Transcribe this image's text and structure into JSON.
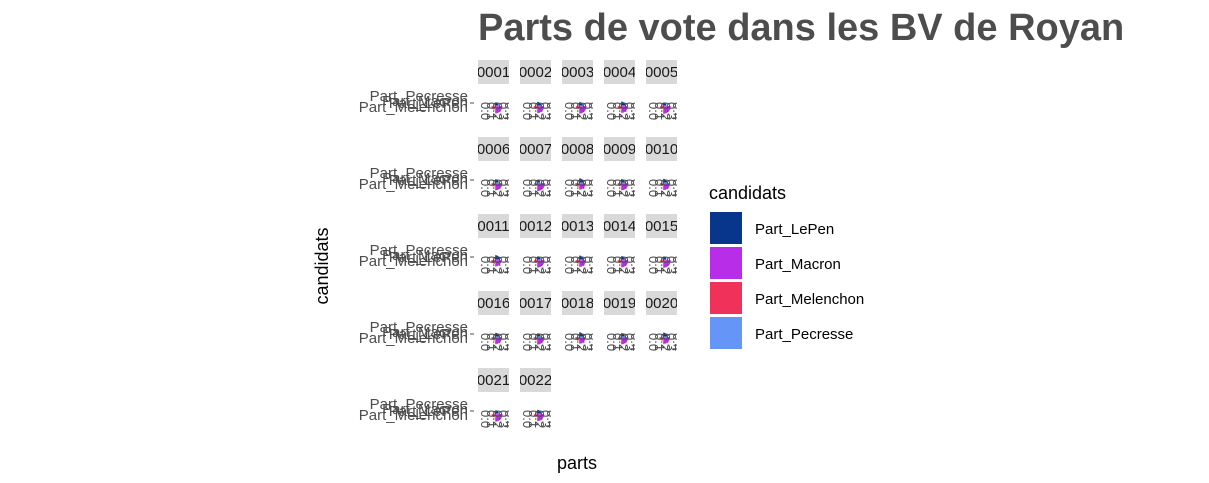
{
  "chart_data": {
    "type": "bar",
    "title": "Parts de vote dans les BV de Royan",
    "xlabel": "parts",
    "ylabel": "candidats",
    "categories": [
      "Part_LePen",
      "Part_Macron",
      "Part_Melenchon",
      "Part_Pecresse"
    ],
    "xlim": [
      0,
      0.4
    ],
    "x_ticks": [
      "0.0",
      "0.1",
      "0.2",
      "0.3",
      "0.4"
    ],
    "legend": {
      "title": "candidats",
      "position": "right",
      "items": [
        {
          "label": "Part_LePen",
          "color": "#08368c"
        },
        {
          "label": "Part_Macron",
          "color": "#b82ee8"
        },
        {
          "label": "Part_Melenchon",
          "color": "#f0325a"
        },
        {
          "label": "Part_Pecresse",
          "color": "#6495f7"
        }
      ]
    },
    "panels": [
      {
        "label": "0001",
        "values": [
          0.18,
          0.34,
          0.17,
          0.06
        ]
      },
      {
        "label": "0002",
        "values": [
          0.2,
          0.33,
          0.16,
          0.06
        ]
      },
      {
        "label": "0003",
        "values": [
          0.19,
          0.35,
          0.15,
          0.07
        ]
      },
      {
        "label": "0004",
        "values": [
          0.21,
          0.32,
          0.16,
          0.05
        ]
      },
      {
        "label": "0005",
        "values": [
          0.17,
          0.36,
          0.15,
          0.07
        ]
      },
      {
        "label": "0006",
        "values": [
          0.18,
          0.34,
          0.17,
          0.06
        ]
      },
      {
        "label": "0007",
        "values": [
          0.16,
          0.37,
          0.14,
          0.08
        ]
      },
      {
        "label": "0008",
        "values": [
          0.22,
          0.31,
          0.18,
          0.05
        ]
      },
      {
        "label": "0009",
        "values": [
          0.19,
          0.34,
          0.16,
          0.06
        ]
      },
      {
        "label": "0010",
        "values": [
          0.2,
          0.33,
          0.15,
          0.06
        ]
      },
      {
        "label": "0011",
        "values": [
          0.23,
          0.3,
          0.18,
          0.05
        ]
      },
      {
        "label": "0012",
        "values": [
          0.18,
          0.35,
          0.15,
          0.07
        ]
      },
      {
        "label": "0013",
        "values": [
          0.21,
          0.32,
          0.17,
          0.05
        ]
      },
      {
        "label": "0014",
        "values": [
          0.19,
          0.34,
          0.16,
          0.06
        ]
      },
      {
        "label": "0015",
        "values": [
          0.17,
          0.36,
          0.14,
          0.07
        ]
      },
      {
        "label": "0016",
        "values": [
          0.2,
          0.33,
          0.17,
          0.06
        ]
      },
      {
        "label": "0017",
        "values": [
          0.18,
          0.35,
          0.16,
          0.06
        ]
      },
      {
        "label": "0018",
        "values": [
          0.22,
          0.31,
          0.18,
          0.05
        ]
      },
      {
        "label": "0019",
        "values": [
          0.19,
          0.34,
          0.15,
          0.07
        ]
      },
      {
        "label": "0020",
        "values": [
          0.21,
          0.32,
          0.17,
          0.06
        ]
      },
      {
        "label": "0021",
        "values": [
          0.18,
          0.35,
          0.16,
          0.06
        ]
      },
      {
        "label": "0022",
        "values": [
          0.2,
          0.33,
          0.15,
          0.07
        ]
      }
    ]
  }
}
